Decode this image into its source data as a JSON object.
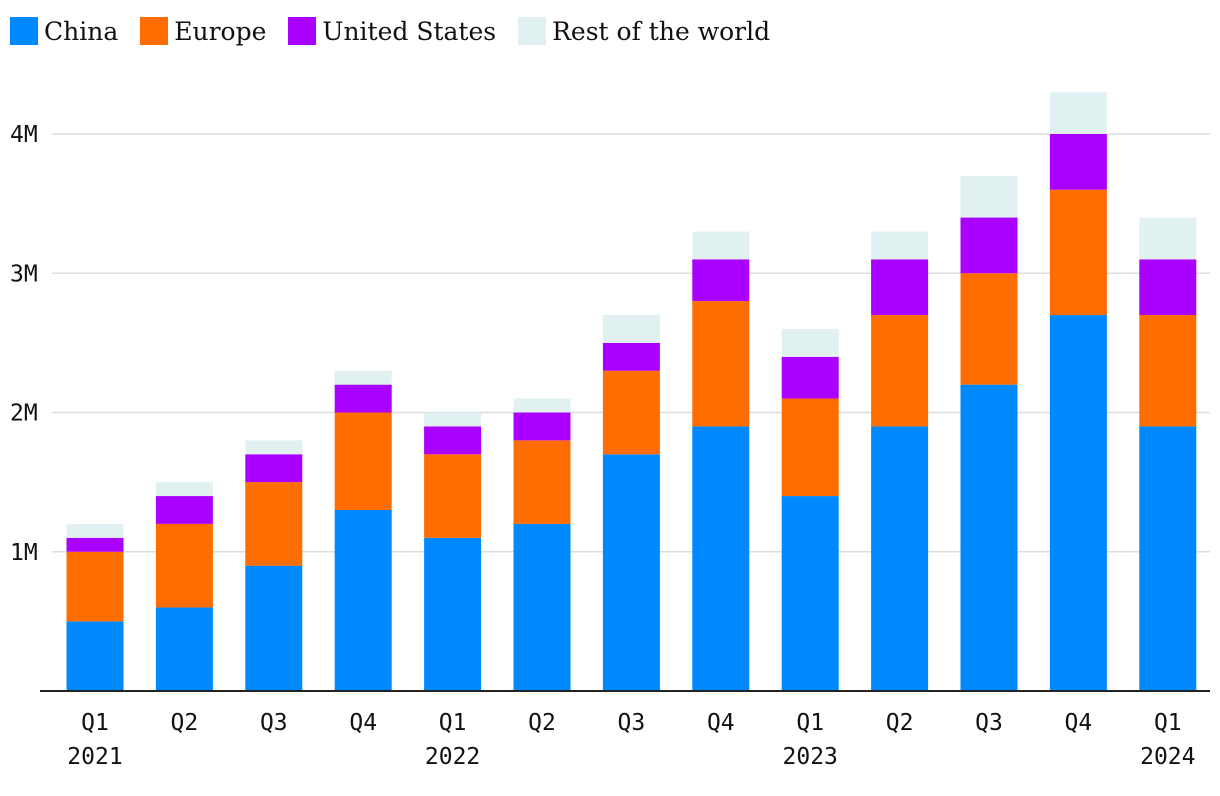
{
  "legend": [
    {
      "label": "China",
      "color": "#0088ff"
    },
    {
      "label": "Europe",
      "color": "#ff6c00"
    },
    {
      "label": "United States",
      "color": "#aa00ff"
    },
    {
      "label": "Rest of the world",
      "color": "#e1f1f1"
    }
  ],
  "chart_data": {
    "type": "bar",
    "stacked": true,
    "title": "",
    "xlabel": "",
    "ylabel": "",
    "ylim": [
      0,
      4300000
    ],
    "yticks": [
      1000000,
      2000000,
      3000000,
      4000000
    ],
    "ytick_labels": [
      "1M",
      "2M",
      "3M",
      "4M"
    ],
    "grid": true,
    "legend_position": "top-left",
    "categories": [
      "Q1 2021",
      "Q2 2021",
      "Q3 2021",
      "Q4 2021",
      "Q1 2022",
      "Q2 2022",
      "Q3 2022",
      "Q4 2022",
      "Q1 2023",
      "Q2 2023",
      "Q3 2023",
      "Q4 2023",
      "Q1 2024"
    ],
    "quarter_labels": [
      "Q1",
      "Q2",
      "Q3",
      "Q4",
      "Q1",
      "Q2",
      "Q3",
      "Q4",
      "Q1",
      "Q2",
      "Q3",
      "Q4",
      "Q1"
    ],
    "year_labels": [
      "2021",
      "",
      "",
      "",
      "2022",
      "",
      "",
      "",
      "2023",
      "",
      "",
      "",
      "2024"
    ],
    "series": [
      {
        "name": "China",
        "color": "#0088ff",
        "values": [
          500000,
          600000,
          900000,
          1300000,
          1100000,
          1200000,
          1700000,
          1900000,
          1400000,
          1900000,
          2200000,
          2700000,
          1900000
        ]
      },
      {
        "name": "Europe",
        "color": "#ff6c00",
        "values": [
          500000,
          600000,
          600000,
          700000,
          600000,
          600000,
          600000,
          900000,
          700000,
          800000,
          800000,
          900000,
          800000
        ]
      },
      {
        "name": "United States",
        "color": "#aa00ff",
        "values": [
          100000,
          200000,
          200000,
          200000,
          200000,
          200000,
          200000,
          300000,
          300000,
          400000,
          400000,
          400000,
          400000
        ]
      },
      {
        "name": "Rest of the world",
        "color": "#e1f1f1",
        "values": [
          100000,
          100000,
          100000,
          100000,
          100000,
          100000,
          200000,
          200000,
          200000,
          200000,
          300000,
          300000,
          300000
        ]
      }
    ]
  }
}
